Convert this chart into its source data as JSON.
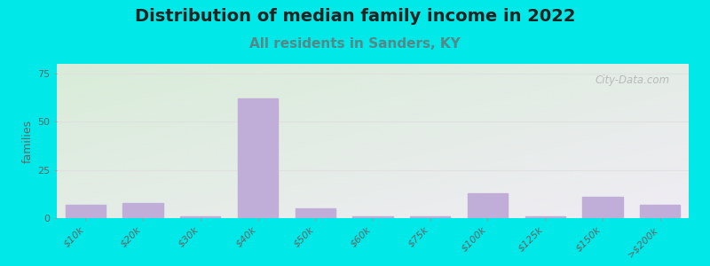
{
  "title": "Distribution of median family income in 2022",
  "subtitle": "All residents in Sanders, KY",
  "ylabel": "families",
  "categories": [
    "$10k",
    "$20k",
    "$30k",
    "$40k",
    "$50k",
    "$60k",
    "$75k",
    "$100k",
    "$125k",
    "$150k",
    ">$200k"
  ],
  "values": [
    7,
    8,
    1,
    62,
    5,
    1,
    1,
    13,
    1,
    11,
    7
  ],
  "bar_color": "#c0aed8",
  "background_outer": "#00e8e8",
  "background_plot_topleft": "#d8ecd8",
  "background_plot_bottomright": "#f0ecf4",
  "title_fontsize": 14,
  "title_color": "#222222",
  "subtitle_fontsize": 11,
  "subtitle_color": "#558888",
  "ylabel_fontsize": 9,
  "tick_fontsize": 8,
  "tick_color": "#666666",
  "ylim": [
    0,
    80
  ],
  "yticks": [
    0,
    25,
    50,
    75
  ],
  "watermark": "City-Data.com",
  "watermark_color": "#aaaaaa",
  "grid_color": "#e0e0e0"
}
